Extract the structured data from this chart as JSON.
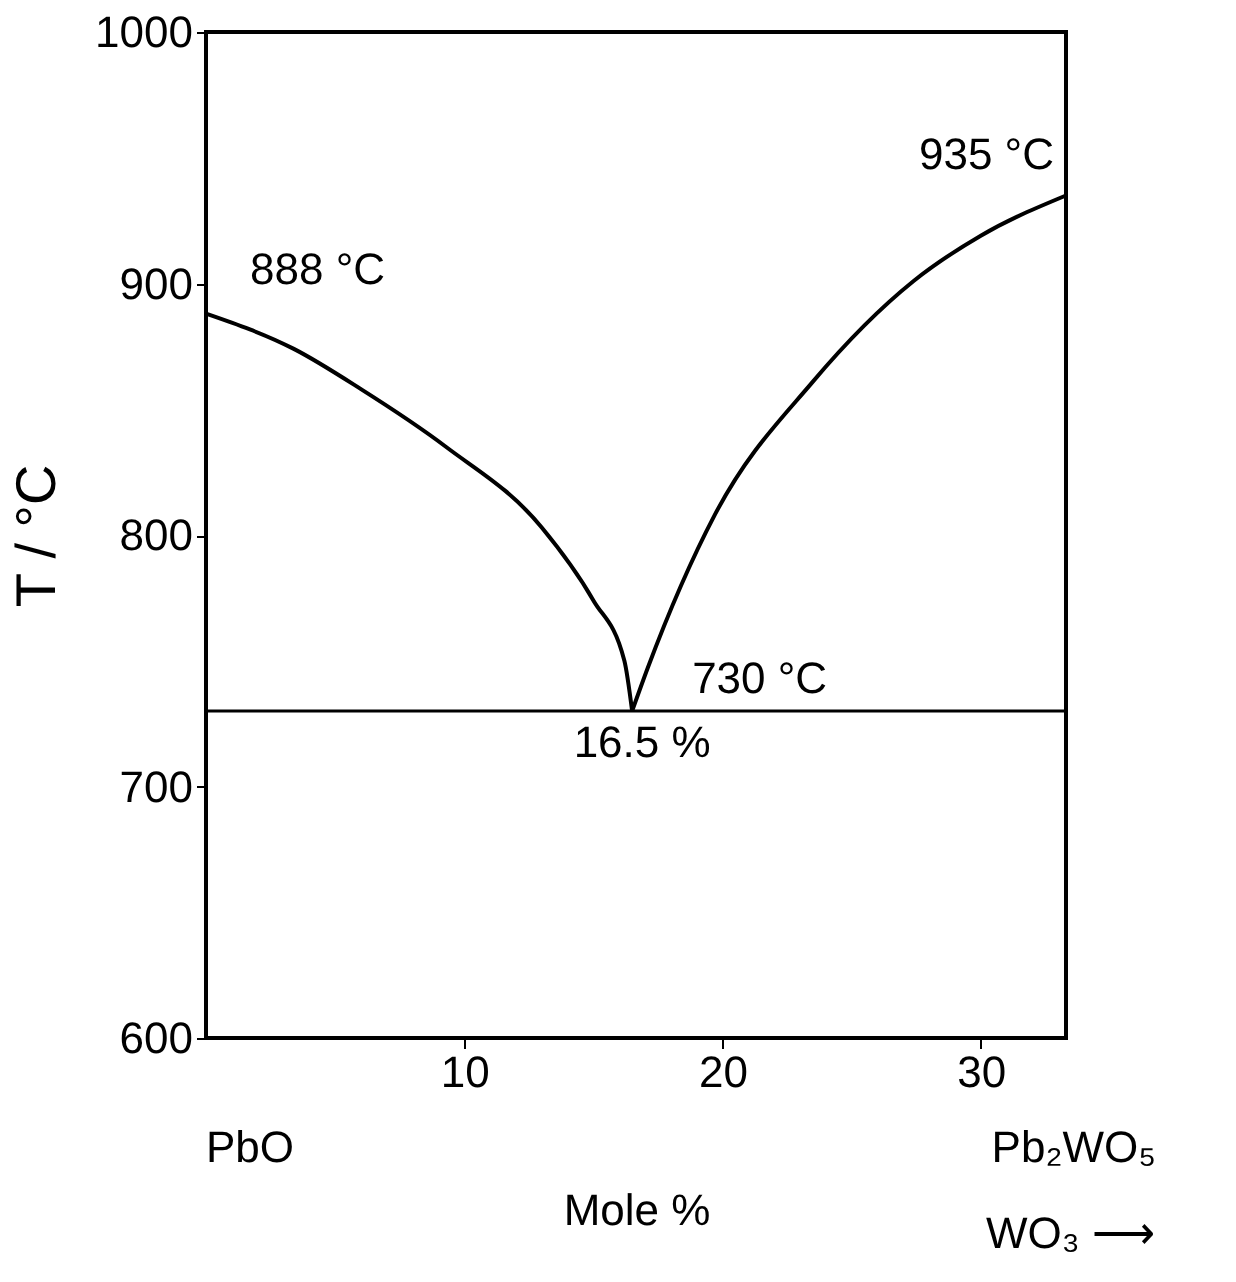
{
  "chart_data": {
    "type": "line",
    "xlabel": "Mole %",
    "ylabel": "T / °C",
    "xlim": [
      0,
      33.3
    ],
    "ylim": [
      600,
      1000
    ],
    "xticks": [
      10,
      20,
      30
    ],
    "yticks": [
      600,
      700,
      800,
      900,
      1000
    ],
    "grid": false,
    "marker": "none",
    "line_style": "solid",
    "series": [
      {
        "color": "#000000",
        "x": [
          0,
          3.4,
          6.0,
          9.3,
          13.0,
          15.0,
          16.2,
          16.5
        ],
        "values": [
          888,
          874,
          858,
          835,
          803,
          774,
          750,
          730
        ]
      },
      {
        "color": "#000000",
        "x": [
          16.5,
          17.1,
          19.7,
          23.5,
          27.4,
          30.0,
          33.3
        ],
        "values": [
          730,
          747,
          808,
          861,
          901,
          919,
          935
        ]
      }
    ],
    "ref_lines": [
      {
        "axis": "y",
        "value": 730,
        "color": "#000000"
      }
    ],
    "annotations": [
      {
        "text": "888 °C",
        "x": 0,
        "y": 888
      },
      {
        "text": "935 °C",
        "x": 33.3,
        "y": 935
      },
      {
        "text": "730 °C",
        "x": 16.5,
        "y": 730
      },
      {
        "text": "16.5 %",
        "x": 16.5,
        "y": 730
      },
      "PbO",
      "Pb₂WO₅",
      "WO₃ ⟶"
    ]
  }
}
